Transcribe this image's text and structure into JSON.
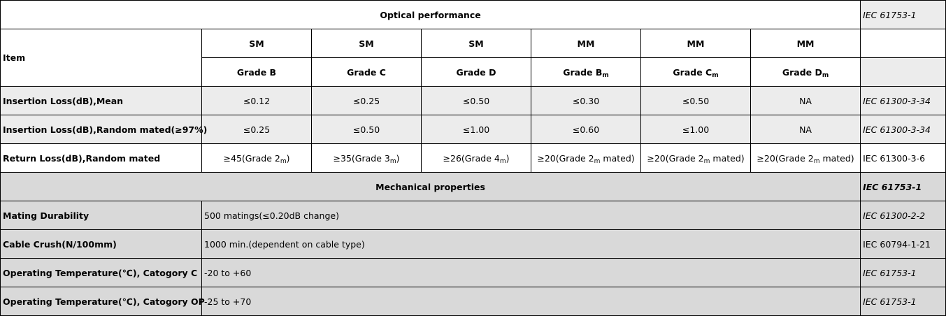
{
  "sections": {
    "optical": {
      "title": "Optical performance",
      "standard": "IEC 61753-1"
    },
    "mechanical": {
      "title": "Mechanical properties",
      "standard": "IEC 61753-1"
    }
  },
  "header": {
    "item_label": "Item",
    "fiber_types": [
      "SM",
      "SM",
      "SM",
      "MM",
      "MM",
      "MM"
    ],
    "grades": [
      {
        "base": "Grade B",
        "sub": ""
      },
      {
        "base": "Grade C",
        "sub": ""
      },
      {
        "base": "Grade D",
        "sub": ""
      },
      {
        "base": "Grade B",
        "sub": "m"
      },
      {
        "base": "Grade C",
        "sub": "m"
      },
      {
        "base": "Grade D",
        "sub": "m"
      }
    ]
  },
  "optical_rows": [
    {
      "item": "Insertion Loss(dB),Mean",
      "values": [
        "≤0.12",
        "≤0.25",
        "≤0.50",
        "≤0.30",
        "≤0.50",
        "NA"
      ],
      "standard": "IEC 61300-3-34"
    },
    {
      "item": "Insertion Loss(dB),Random mated(≥97%)",
      "values": [
        "≤0.25",
        "≤0.50",
        "≤1.00",
        "≤0.60",
        "≤1.00",
        "NA"
      ],
      "standard": "IEC 61300-3-34"
    },
    {
      "item": "Return Loss(dB),Random mated",
      "values": [
        {
          "pre": "≥45(Grade 2",
          "sub": "m",
          "post": ")"
        },
        {
          "pre": "≥35(Grade 3",
          "sub": "m",
          "post": ")"
        },
        {
          "pre": "≥26(Grade 4",
          "sub": "m",
          "post": ")"
        },
        {
          "pre": "≥20(Grade 2",
          "sub": "m",
          "post": " mated)"
        },
        {
          "pre": "≥20(Grade 2",
          "sub": "m",
          "post": " mated)"
        },
        {
          "pre": "≥20(Grade 2",
          "sub": "m",
          "post": " mated)"
        }
      ],
      "standard": "IEC 61300-3-6"
    }
  ],
  "mechanical_rows": [
    {
      "item": "Mating Durability",
      "value": "500 matings(≤0.20dB change)",
      "standard": "IEC 61300-2-2"
    },
    {
      "item": "Cable Crush(N/100mm)",
      "value": "1000 min.(dependent on cable type)",
      "standard": "IEC 60794-1-21"
    },
    {
      "item": "Operating Temperature(℃), Catogory C",
      "value": "-20 to +60",
      "standard": "IEC 61753-1"
    },
    {
      "item": "Operating Temperature(℃), Catogory OP",
      "value": "-25 to +70",
      "standard": "IEC 61753-1"
    }
  ]
}
